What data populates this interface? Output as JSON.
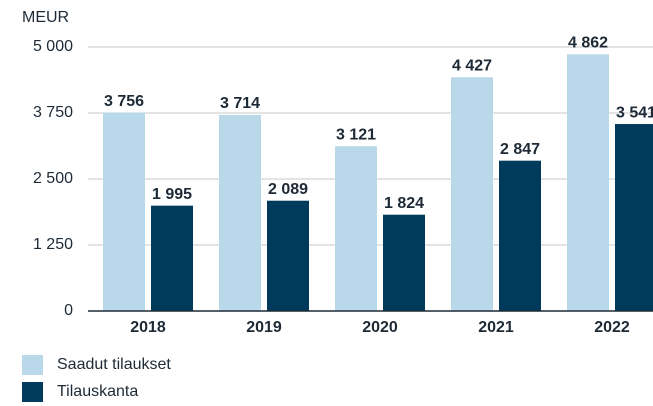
{
  "chart_data": {
    "type": "bar",
    "y_axis_label": "MEUR",
    "categories": [
      "2018",
      "2019",
      "2020",
      "2021",
      "2022"
    ],
    "series": [
      {
        "name": "Saadut tilaukset",
        "color": "#b9d9eb",
        "values": [
          3756,
          3714,
          3121,
          4427,
          4862
        ],
        "value_labels": [
          "3 756",
          "3 714",
          "3 121",
          "4 427",
          "4 862"
        ]
      },
      {
        "name": "Tilauskanta",
        "color": "#003b5c",
        "values": [
          1995,
          2089,
          1824,
          2847,
          3541
        ],
        "value_labels": [
          "1 995",
          "2 089",
          "1 824",
          "2 847",
          "3 541"
        ]
      }
    ],
    "ylim": [
      0,
      5000
    ],
    "yticks": [
      0,
      {
        "value": 1250,
        "label": "1 250"
      },
      {
        "value": 2500,
        "label": "2 500"
      },
      {
        "value": 3750,
        "label": "3 750"
      },
      {
        "value": 5000,
        "label": "5 000"
      }
    ],
    "grid": true,
    "legend": "bottom-left"
  }
}
